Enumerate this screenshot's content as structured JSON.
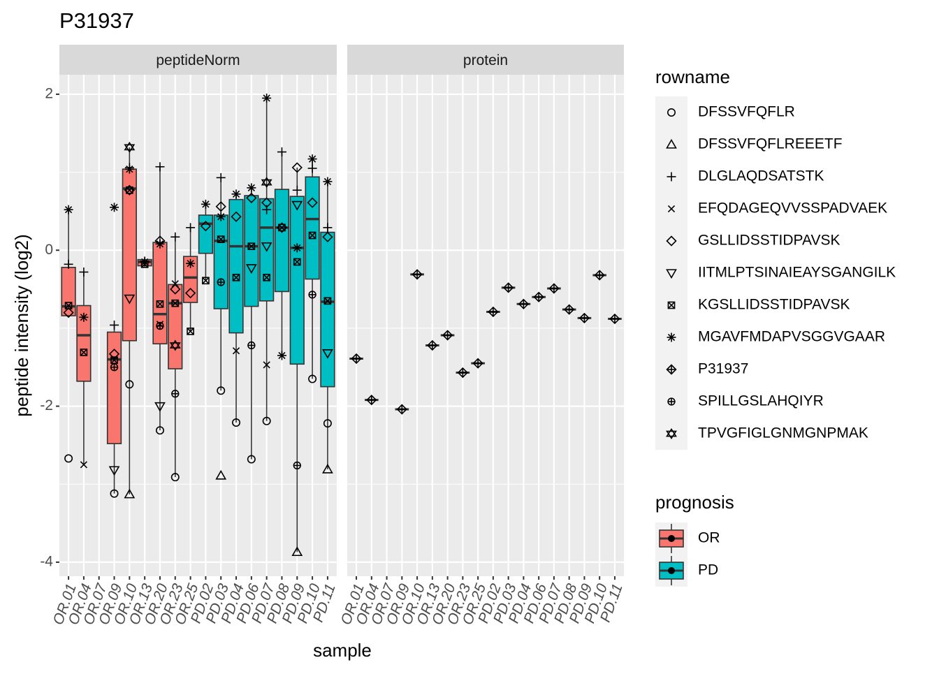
{
  "chart_data": {
    "type": "box",
    "title": "P31937",
    "x_label": "sample",
    "y_label": "peptide intensity (log2)",
    "facets": [
      "peptideNorm",
      "protein"
    ],
    "categories": [
      "OR.01",
      "OR.04",
      "OR.07",
      "OR.09",
      "OR.10",
      "OR.13",
      "OR.20",
      "OR.23",
      "OR.25",
      "PD.02",
      "PD.03",
      "PD.04",
      "PD.06",
      "PD.07",
      "PD.08",
      "PD.09",
      "PD.10",
      "PD.11"
    ],
    "category_group": [
      0,
      0,
      0,
      0,
      0,
      0,
      0,
      0,
      0,
      1,
      1,
      1,
      1,
      1,
      1,
      1,
      1,
      1
    ],
    "ylim": [
      -4.18,
      2.25
    ],
    "yticks": [
      -4,
      -2,
      0,
      2
    ],
    "grid": true,
    "fill_legend": {
      "title": "prognosis",
      "names": [
        "OR",
        "PD"
      ],
      "colors": [
        "#F8766D",
        "#00BFC4"
      ]
    },
    "shape_legend_title": "rowname",
    "boxes": [
      [
        {
          "low": -0.84,
          "q1": -0.84,
          "median": -0.72,
          "q3": -0.22,
          "high": 0.52
        },
        {
          "low": -2.75,
          "q1": -1.68,
          "median": -1.09,
          "q3": -0.71,
          "high": -0.28
        },
        null,
        {
          "low": -3.12,
          "q1": -2.48,
          "median": -1.4,
          "q3": -1.05,
          "high": -0.96
        },
        {
          "low": -3.13,
          "q1": -1.16,
          "median": 0.79,
          "q3": 1.04,
          "high": 1.32
        },
        {
          "low": -0.21,
          "q1": -0.2,
          "median": -0.15,
          "q3": -0.12,
          "high": -0.11
        },
        {
          "low": -2.31,
          "q1": -1.2,
          "median": -0.82,
          "q3": 0.1,
          "high": 1.07
        },
        {
          "low": -2.91,
          "q1": -1.52,
          "median": -0.68,
          "q3": -0.44,
          "high": 0.17
        },
        {
          "low": -1.04,
          "q1": -0.67,
          "median": -0.35,
          "q3": -0.08,
          "high": 0.29
        },
        {
          "low": -0.39,
          "q1": -0.04,
          "median": 0.34,
          "q3": 0.45,
          "high": 0.59
        },
        {
          "low": -1.8,
          "q1": -0.75,
          "median": 0.12,
          "q3": 0.45,
          "high": 0.93
        },
        {
          "low": -2.21,
          "q1": -1.06,
          "median": 0.05,
          "q3": 0.65,
          "high": 0.72
        },
        {
          "low": -2.68,
          "q1": -0.72,
          "median": 0.05,
          "q3": 0.7,
          "high": 0.8
        },
        {
          "low": -2.19,
          "q1": -0.65,
          "median": 0.29,
          "q3": 0.66,
          "high": 1.95
        },
        {
          "low": -1.35,
          "q1": -0.53,
          "median": 0.29,
          "q3": 0.78,
          "high": 1.26
        },
        {
          "low": -3.87,
          "q1": -1.46,
          "median": 0.03,
          "q3": 0.69,
          "high": 1.06
        },
        {
          "low": -1.65,
          "q1": -0.37,
          "median": 0.4,
          "q3": 0.94,
          "high": 1.17
        },
        {
          "low": -2.81,
          "q1": -1.75,
          "median": -0.66,
          "q3": 0.23,
          "high": 0.88
        }
      ],
      null
    ],
    "series": [
      {
        "name": "DFSSVFQFLR",
        "shape": "circle",
        "values": [
          [
            -2.67,
            null,
            null,
            -3.12,
            -1.72,
            null,
            -2.31,
            -2.91,
            null,
            null,
            -1.8,
            -2.21,
            -2.68,
            -2.19,
            null,
            null,
            -1.65,
            -2.22
          ],
          [
            null,
            null,
            null,
            null,
            null,
            null,
            null,
            null,
            null,
            null,
            null,
            null,
            null,
            null,
            null,
            null,
            null,
            null
          ]
        ]
      },
      {
        "name": "DFSSVFQFLREEETF",
        "shape": "triangle",
        "values": [
          [
            null,
            null,
            null,
            null,
            -3.13,
            null,
            null,
            null,
            null,
            null,
            -2.89,
            null,
            null,
            null,
            null,
            -3.87,
            null,
            -2.81
          ],
          [
            null,
            null,
            null,
            null,
            null,
            null,
            null,
            null,
            null,
            null,
            null,
            null,
            null,
            null,
            null,
            null,
            null,
            null
          ]
        ]
      },
      {
        "name": "DLGLAQDSATSTK",
        "shape": "plus",
        "values": [
          [
            -0.18,
            -0.28,
            null,
            -0.96,
            1.06,
            -0.14,
            1.07,
            0.17,
            0.29,
            null,
            0.93,
            null,
            null,
            0.52,
            1.26,
            0.77,
            1.05,
            0.29
          ],
          [
            null,
            null,
            null,
            null,
            null,
            null,
            null,
            null,
            null,
            null,
            null,
            null,
            null,
            null,
            null,
            null,
            null,
            null
          ]
        ]
      },
      {
        "name": "EFQDAGEQVVSSPADVAEK",
        "shape": "cross",
        "values": [
          [
            null,
            -2.75,
            null,
            null,
            null,
            null,
            -0.95,
            -0.43,
            null,
            null,
            null,
            -1.29,
            null,
            -1.47,
            null,
            null,
            null,
            null
          ],
          [
            null,
            null,
            null,
            null,
            null,
            null,
            null,
            null,
            null,
            null,
            null,
            null,
            null,
            null,
            null,
            null,
            null,
            null
          ]
        ]
      },
      {
        "name": "GSLLIDSSTIDPAVSK",
        "shape": "diamond",
        "values": [
          [
            -0.8,
            null,
            null,
            -1.33,
            0.77,
            null,
            0.12,
            -0.5,
            -0.55,
            0.31,
            0.56,
            0.43,
            0.67,
            0.61,
            0.29,
            1.06,
            0.61,
            0.17
          ],
          [
            null,
            null,
            null,
            null,
            null,
            null,
            null,
            null,
            null,
            null,
            null,
            null,
            null,
            null,
            null,
            null,
            null,
            null
          ]
        ]
      },
      {
        "name": "IITMLPTSINAIEAYSGANGILK",
        "shape": "triangle-down",
        "values": [
          [
            null,
            null,
            null,
            -2.82,
            -0.62,
            null,
            -2.0,
            null,
            null,
            null,
            null,
            null,
            -0.23,
            0.05,
            null,
            0.58,
            null,
            -1.32
          ],
          [
            null,
            null,
            null,
            null,
            null,
            null,
            null,
            null,
            null,
            null,
            null,
            null,
            null,
            null,
            null,
            null,
            null,
            null
          ]
        ]
      },
      {
        "name": "KGSLLIDSSTIDPAVSK",
        "shape": "square-cross",
        "values": [
          [
            -0.71,
            -1.31,
            null,
            -1.41,
            0.77,
            -0.18,
            -0.69,
            -0.68,
            -1.04,
            -0.39,
            0.14,
            -0.35,
            0.05,
            -0.35,
            0.29,
            -0.15,
            0.19,
            -0.65
          ],
          [
            null,
            null,
            null,
            null,
            null,
            null,
            null,
            null,
            null,
            null,
            null,
            null,
            null,
            null,
            null,
            null,
            null,
            null
          ]
        ]
      },
      {
        "name": "MGAVFMDAPVSGGVGAAR",
        "shape": "asterisk",
        "values": [
          [
            0.52,
            -0.86,
            null,
            0.55,
            1.04,
            -0.15,
            0.08,
            null,
            -0.17,
            0.59,
            0.43,
            0.72,
            0.8,
            1.95,
            -1.35,
            0.03,
            1.17,
            0.88
          ],
          [
            null,
            null,
            null,
            null,
            null,
            null,
            null,
            null,
            null,
            null,
            null,
            null,
            null,
            null,
            null,
            null,
            null,
            null
          ]
        ]
      },
      {
        "name": "P31937",
        "shape": "diamond-plus",
        "values": [
          [
            null,
            null,
            null,
            null,
            null,
            null,
            null,
            null,
            null,
            null,
            null,
            null,
            null,
            null,
            null,
            null,
            null,
            null
          ],
          [
            -1.39,
            -1.92,
            null,
            -2.04,
            -0.31,
            -1.22,
            -1.09,
            -1.57,
            -1.45,
            -0.79,
            -0.48,
            -0.69,
            -0.6,
            -0.49,
            -0.76,
            -0.87,
            -0.32,
            -0.88
          ]
        ]
      },
      {
        "name": "SPILLGSLAHQIYR",
        "shape": "circle-plus",
        "values": [
          [
            null,
            null,
            null,
            -1.5,
            null,
            null,
            -0.97,
            -1.84,
            null,
            null,
            -0.41,
            null,
            -1.22,
            null,
            null,
            -2.76,
            -0.57,
            null
          ],
          [
            null,
            null,
            null,
            null,
            null,
            null,
            null,
            null,
            null,
            null,
            null,
            null,
            null,
            null,
            null,
            null,
            null,
            null
          ]
        ]
      },
      {
        "name": "TPVGFIGLGNMGNPMAK",
        "shape": "hexagram",
        "values": [
          [
            null,
            null,
            null,
            null,
            1.32,
            null,
            null,
            -1.22,
            null,
            null,
            null,
            null,
            null,
            0.87,
            null,
            null,
            null,
            null
          ],
          [
            null,
            null,
            null,
            null,
            null,
            null,
            null,
            null,
            null,
            null,
            null,
            null,
            null,
            null,
            null,
            null,
            null,
            null
          ]
        ]
      }
    ]
  }
}
